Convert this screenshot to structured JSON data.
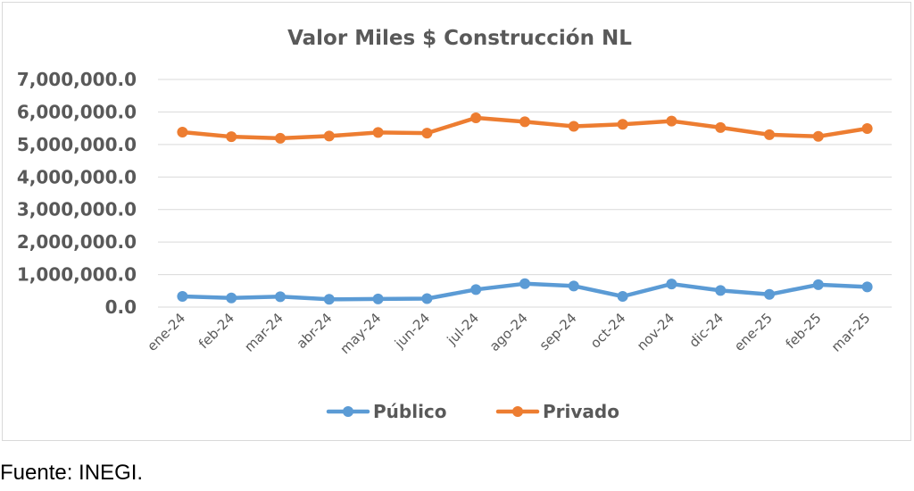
{
  "source_note": "Fuente: INEGI.",
  "colors": {
    "publico": "#5b9bd5",
    "privado": "#ed7d31",
    "grid": "#d9d9d9",
    "text": "#595959"
  },
  "chart_data": {
    "type": "line",
    "title": "Valor Miles $ Construcción NL",
    "xlabel": "",
    "ylabel": "",
    "categories": [
      "ene-24",
      "feb-24",
      "mar-24",
      "abr-24",
      "may-24",
      "jun-24",
      "jul-24",
      "ago-24",
      "sep-24",
      "oct-24",
      "nov-24",
      "dic-24",
      "ene-25",
      "feb-25",
      "mar-25"
    ],
    "ylim": [
      0,
      7000000
    ],
    "yticks": [
      0,
      1000000,
      2000000,
      3000000,
      4000000,
      5000000,
      6000000,
      7000000
    ],
    "ytick_labels": [
      "0.0",
      "1,000,000.0",
      "2,000,000.0",
      "3,000,000.0",
      "4,000,000.0",
      "5,000,000.0",
      "6,000,000.0",
      "7,000,000.0"
    ],
    "grid": true,
    "legend_position": "bottom",
    "series": [
      {
        "name": "Público",
        "color": "#5b9bd5",
        "values": [
          330000,
          280000,
          320000,
          240000,
          250000,
          260000,
          540000,
          720000,
          650000,
          330000,
          710000,
          510000,
          390000,
          690000,
          620000
        ]
      },
      {
        "name": "Privado",
        "color": "#ed7d31",
        "values": [
          5380000,
          5240000,
          5190000,
          5260000,
          5370000,
          5350000,
          5820000,
          5700000,
          5560000,
          5620000,
          5720000,
          5520000,
          5300000,
          5250000,
          5490000
        ]
      }
    ]
  }
}
